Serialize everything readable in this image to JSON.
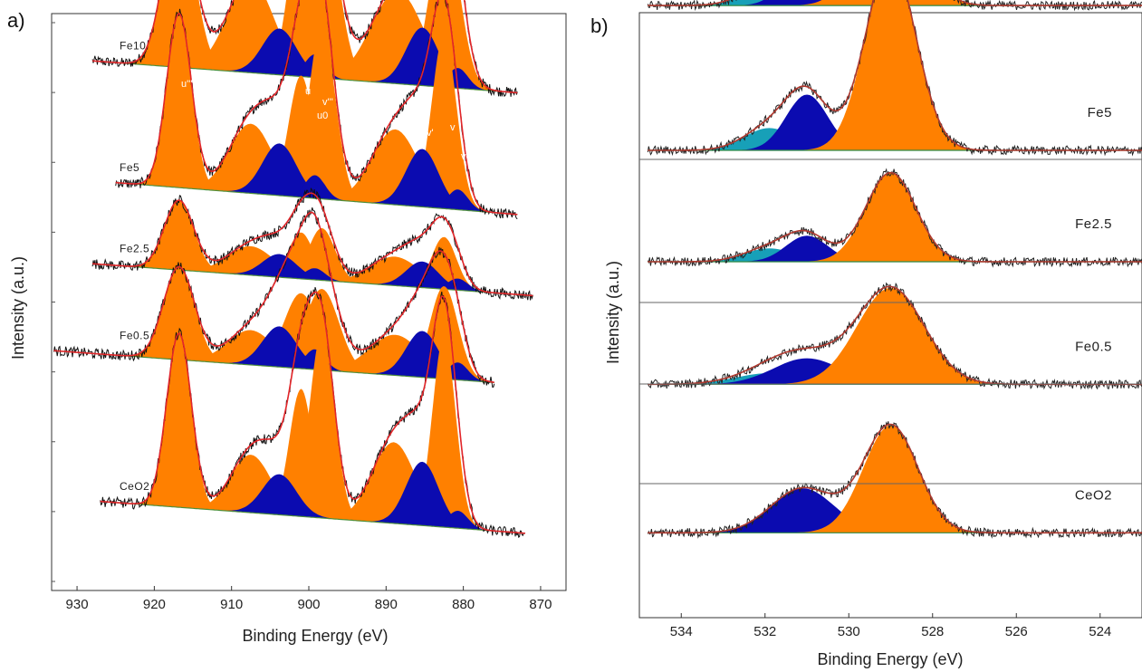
{
  "chart_data": [
    {
      "panel": "a)",
      "type": "area",
      "xlabel": "Binding Energy (eV)",
      "ylabel": "Intensity (a.u.)",
      "xlim": [
        932,
        868
      ],
      "x_reversed": true,
      "xticks": [
        930,
        920,
        910,
        900,
        890,
        880,
        870
      ],
      "yticks_labeled": false,
      "grid": false,
      "stacked_offset": true,
      "colors": {
        "data_noise": "#111111",
        "fit_envelope": "#e3262a",
        "ce4_component": "#ff8000",
        "ce3_component": "#0b0bb0",
        "baseline": "#4e8f3a"
      },
      "peak_labels": [
        "u'''",
        "u''",
        "u'",
        "u",
        "u0",
        "v'''",
        "v''",
        "v'",
        "v",
        "v0"
      ],
      "series": [
        {
          "name": "Fe10",
          "x_range": [
            928,
            873
          ],
          "offset": 0.84,
          "peaks": [
            {
              "center": 916.8,
              "height": 0.27,
              "width": 2.0,
              "type": "ce4"
            },
            {
              "center": 907.5,
              "height": 0.16,
              "width": 3.0,
              "type": "ce4"
            },
            {
              "center": 901.0,
              "height": 0.27,
              "width": 1.6,
              "type": "ce4"
            },
            {
              "center": 898.3,
              "height": 0.31,
              "width": 2.0,
              "type": "ce4"
            },
            {
              "center": 888.5,
              "height": 0.16,
              "width": 3.4,
              "type": "ce4"
            },
            {
              "center": 882.4,
              "height": 0.28,
              "width": 1.9,
              "type": "ce4"
            },
            {
              "center": 903.8,
              "height": 0.08,
              "width": 2.2,
              "type": "ce3"
            },
            {
              "center": 899.2,
              "height": 0.04,
              "width": 1.3,
              "type": "ce3"
            },
            {
              "center": 885.3,
              "height": 0.1,
              "width": 2.1,
              "type": "ce3"
            },
            {
              "center": 880.7,
              "height": 0.035,
              "width": 1.3,
              "type": "ce3"
            }
          ]
        },
        {
          "name": "Fe5",
          "x_range": [
            925,
            873
          ],
          "offset": 0.63,
          "peaks": [
            {
              "center": 916.8,
              "height": 0.3,
              "width": 1.6,
              "type": "ce4"
            },
            {
              "center": 907.5,
              "height": 0.12,
              "width": 2.8,
              "type": "ce4"
            },
            {
              "center": 901.0,
              "height": 0.21,
              "width": 1.6,
              "type": "ce4"
            },
            {
              "center": 898.3,
              "height": 0.3,
              "width": 1.7,
              "type": "ce4"
            },
            {
              "center": 888.8,
              "height": 0.13,
              "width": 3.0,
              "type": "ce4"
            },
            {
              "center": 882.5,
              "height": 0.3,
              "width": 1.6,
              "type": "ce4"
            },
            {
              "center": 903.8,
              "height": 0.09,
              "width": 2.2,
              "type": "ce3"
            },
            {
              "center": 899.2,
              "height": 0.04,
              "width": 1.3,
              "type": "ce3"
            },
            {
              "center": 885.3,
              "height": 0.1,
              "width": 2.1,
              "type": "ce3"
            },
            {
              "center": 880.7,
              "height": 0.035,
              "width": 1.3,
              "type": "ce3"
            }
          ]
        },
        {
          "name": "Fe2.5",
          "x_range": [
            928,
            871
          ],
          "offset": 0.49,
          "peaks": [
            {
              "center": 916.8,
              "height": 0.12,
              "width": 1.9,
              "type": "ce4"
            },
            {
              "center": 907.5,
              "height": 0.05,
              "width": 3.0,
              "type": "ce4"
            },
            {
              "center": 901.0,
              "height": 0.08,
              "width": 1.6,
              "type": "ce4"
            },
            {
              "center": 898.3,
              "height": 0.09,
              "width": 1.7,
              "type": "ce4"
            },
            {
              "center": 888.8,
              "height": 0.05,
              "width": 3.2,
              "type": "ce4"
            },
            {
              "center": 882.5,
              "height": 0.09,
              "width": 1.6,
              "type": "ce4"
            },
            {
              "center": 903.8,
              "height": 0.04,
              "width": 2.2,
              "type": "ce3"
            },
            {
              "center": 899.2,
              "height": 0.02,
              "width": 1.3,
              "type": "ce3"
            },
            {
              "center": 885.3,
              "height": 0.045,
              "width": 2.1,
              "type": "ce3"
            },
            {
              "center": 880.7,
              "height": 0.02,
              "width": 1.3,
              "type": "ce3"
            }
          ]
        },
        {
          "name": "Fe0.5",
          "x_range": [
            933,
            876
          ],
          "offset": 0.34,
          "peaks": [
            {
              "center": 916.8,
              "height": 0.16,
              "width": 2.0,
              "type": "ce4"
            },
            {
              "center": 907.5,
              "height": 0.06,
              "width": 3.0,
              "type": "ce4"
            },
            {
              "center": 901.0,
              "height": 0.13,
              "width": 2.2,
              "type": "ce4"
            },
            {
              "center": 898.3,
              "height": 0.14,
              "width": 2.2,
              "type": "ce4"
            },
            {
              "center": 888.8,
              "height": 0.07,
              "width": 3.4,
              "type": "ce4"
            },
            {
              "center": 882.5,
              "height": 0.16,
              "width": 1.8,
              "type": "ce4"
            },
            {
              "center": 903.8,
              "height": 0.07,
              "width": 2.2,
              "type": "ce3"
            },
            {
              "center": 899.2,
              "height": 0.035,
              "width": 1.3,
              "type": "ce3"
            },
            {
              "center": 885.3,
              "height": 0.08,
              "width": 2.1,
              "type": "ce3"
            },
            {
              "center": 880.7,
              "height": 0.03,
              "width": 1.3,
              "type": "ce3"
            }
          ]
        },
        {
          "name": "CeO2",
          "x_range": [
            927,
            872
          ],
          "offset": 0.08,
          "peaks": [
            {
              "center": 916.8,
              "height": 0.3,
              "width": 1.6,
              "type": "ce4"
            },
            {
              "center": 907.5,
              "height": 0.1,
              "width": 2.6,
              "type": "ce4"
            },
            {
              "center": 901.0,
              "height": 0.22,
              "width": 1.5,
              "type": "ce4"
            },
            {
              "center": 898.3,
              "height": 0.32,
              "width": 1.6,
              "type": "ce4"
            },
            {
              "center": 889.0,
              "height": 0.14,
              "width": 2.8,
              "type": "ce4"
            },
            {
              "center": 882.5,
              "height": 0.33,
              "width": 1.5,
              "type": "ce4"
            },
            {
              "center": 903.8,
              "height": 0.07,
              "width": 2.2,
              "type": "ce3"
            },
            {
              "center": 885.3,
              "height": 0.11,
              "width": 2.1,
              "type": "ce3"
            },
            {
              "center": 880.7,
              "height": 0.03,
              "width": 1.3,
              "type": "ce3"
            }
          ]
        }
      ]
    },
    {
      "panel": "b)",
      "type": "area",
      "xlabel": "Binding Energy (eV)",
      "ylabel": "Intensity (a.u.)",
      "xlim": [
        535,
        523
      ],
      "x_reversed": true,
      "xticks": [
        534,
        532,
        530,
        528,
        526,
        524
      ],
      "yticks_labeled": false,
      "grid": false,
      "stacked_offset": true,
      "colors": {
        "data_noise": "#222222",
        "fit_envelope": "#b03a30",
        "lattice_oxygen": "#ff8000",
        "surface_oxygen": "#0b0bb0",
        "adsorbed_oxygen": "#17a0b8",
        "baseline": "#2f8a44"
      },
      "series": [
        {
          "name": "Fe10",
          "x_range": [
            534.8,
            523
          ],
          "offset": 0.795,
          "peaks": [
            {
              "center": 529.0,
              "height": 0.18,
              "width": 0.65,
              "type": "lattice"
            },
            {
              "center": 531.0,
              "height": 0.065,
              "width": 0.5,
              "type": "surface"
            },
            {
              "center": 531.9,
              "height": 0.028,
              "width": 0.6,
              "type": "adsorbed"
            }
          ]
        },
        {
          "name": "Fe5",
          "x_range": [
            534.8,
            523
          ],
          "offset": 0.6,
          "peaks": [
            {
              "center": 529.0,
              "height": 0.255,
              "width": 0.6,
              "type": "lattice"
            },
            {
              "center": 531.0,
              "height": 0.075,
              "width": 0.5,
              "type": "surface"
            },
            {
              "center": 531.9,
              "height": 0.03,
              "width": 0.6,
              "type": "adsorbed"
            }
          ]
        },
        {
          "name": "Fe2.5",
          "x_range": [
            534.8,
            523
          ],
          "offset": 0.45,
          "peaks": [
            {
              "center": 529.0,
              "height": 0.12,
              "width": 0.6,
              "type": "lattice"
            },
            {
              "center": 531.0,
              "height": 0.035,
              "width": 0.5,
              "type": "surface"
            },
            {
              "center": 531.9,
              "height": 0.018,
              "width": 0.6,
              "type": "adsorbed"
            }
          ]
        },
        {
          "name": "Fe0.5",
          "x_range": [
            534.8,
            523
          ],
          "offset": 0.285,
          "peaks": [
            {
              "center": 529.0,
              "height": 0.13,
              "width": 0.8,
              "type": "lattice"
            },
            {
              "center": 531.0,
              "height": 0.035,
              "width": 0.8,
              "type": "surface"
            },
            {
              "center": 531.9,
              "height": 0.015,
              "width": 0.8,
              "type": "adsorbed"
            }
          ]
        },
        {
          "name": "CeO2",
          "x_range": [
            534.8,
            523
          ],
          "offset": 0.085,
          "peaks": [
            {
              "center": 529.0,
              "height": 0.145,
              "width": 0.65,
              "type": "lattice"
            },
            {
              "center": 531.1,
              "height": 0.06,
              "width": 0.75,
              "type": "surface"
            }
          ]
        }
      ]
    }
  ]
}
